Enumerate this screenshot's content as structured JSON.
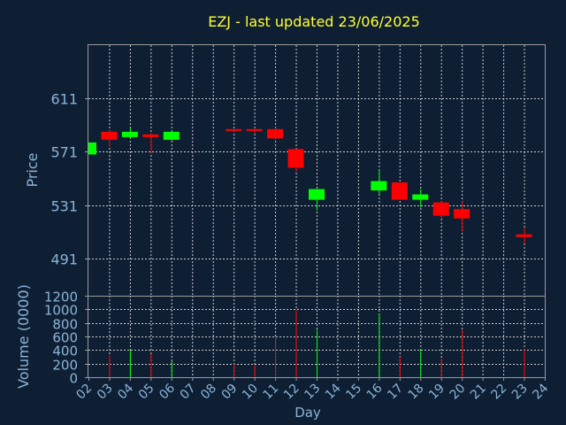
{
  "chart_data": {
    "type": "candlestick",
    "title": "EZJ - last updated 23/06/2025",
    "xlabel": "Day",
    "price_panel": {
      "ylabel": "Price",
      "ylim": [
        463,
        651
      ],
      "yticks": [
        491,
        531,
        571,
        611
      ],
      "grid": true
    },
    "volume_panel": {
      "ylabel": "Volume (0000)",
      "ylim": [
        0,
        1200
      ],
      "yticks": [
        0,
        200,
        400,
        600,
        800,
        1000,
        1200
      ],
      "grid": true
    },
    "x_ticks": [
      "02",
      "03",
      "04",
      "05",
      "06",
      "07",
      "08",
      "09",
      "10",
      "11",
      "12",
      "13",
      "14",
      "15",
      "16",
      "17",
      "18",
      "19",
      "20",
      "21",
      "22",
      "23",
      "24"
    ],
    "colors": {
      "up": "#00ff00",
      "down": "#ff0000",
      "title": "#ffff33",
      "axis_text": "#8ab4d8",
      "background": "#0f1f33"
    },
    "candles": [
      {
        "day": "02",
        "open": 569,
        "close": 578,
        "high": 578,
        "low": 569,
        "volume": 0
      },
      {
        "day": "03",
        "open": 586,
        "close": 580,
        "high": 587,
        "low": 575,
        "volume": 320
      },
      {
        "day": "04",
        "open": 582,
        "close": 586,
        "high": 589,
        "low": 581,
        "volume": 400
      },
      {
        "day": "05",
        "open": 584,
        "close": 582,
        "high": 585,
        "low": 570,
        "volume": 340
      },
      {
        "day": "06",
        "open": 580,
        "close": 586,
        "high": 587,
        "low": 579,
        "volume": 240
      },
      {
        "day": "09",
        "open": 588,
        "close": 587,
        "high": 588,
        "low": 586,
        "volume": 200
      },
      {
        "day": "10",
        "open": 588,
        "close": 587,
        "high": 589,
        "low": 585,
        "volume": 180
      },
      {
        "day": "11",
        "open": 588,
        "close": 581,
        "high": 589,
        "low": 580,
        "volume": 580
      },
      {
        "day": "12",
        "open": 573,
        "close": 559,
        "high": 573,
        "low": 556,
        "volume": 1000
      },
      {
        "day": "13",
        "open": 535,
        "close": 543,
        "high": 543,
        "low": 527,
        "volume": 700
      },
      {
        "day": "16",
        "open": 542,
        "close": 549,
        "high": 557,
        "low": 539,
        "volume": 940
      },
      {
        "day": "17",
        "open": 548,
        "close": 535,
        "high": 548,
        "low": 535,
        "volume": 300
      },
      {
        "day": "18",
        "open": 535,
        "close": 539,
        "high": 543,
        "low": 529,
        "volume": 400
      },
      {
        "day": "19",
        "open": 533,
        "close": 523,
        "high": 534,
        "low": 521,
        "volume": 280
      },
      {
        "day": "20",
        "open": 528,
        "close": 521,
        "high": 534,
        "low": 511,
        "volume": 700
      },
      {
        "day": "23",
        "open": 509,
        "close": 507,
        "high": 514,
        "low": 502,
        "volume": 420
      }
    ]
  }
}
